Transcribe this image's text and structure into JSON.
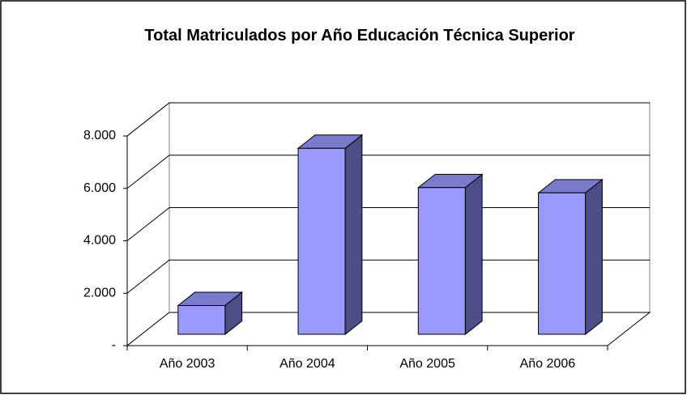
{
  "chart_data": {
    "type": "bar3d",
    "title": "Total Matriculados por Año Educación Técnica Superior",
    "categories": [
      "Año 2003",
      "Año 2004",
      "Año 2005",
      "Año 2006"
    ],
    "values": [
      1100,
      7100,
      5600,
      5400
    ],
    "color": "#9999ff",
    "ylim": [
      0,
      8000
    ],
    "yticks": [
      {
        "value": 0,
        "label": "-"
      },
      {
        "value": 2000,
        "label": "2.000"
      },
      {
        "value": 4000,
        "label": "4.000"
      },
      {
        "value": 6000,
        "label": "6.000"
      },
      {
        "value": 8000,
        "label": "8.000"
      }
    ],
    "grid": true
  }
}
